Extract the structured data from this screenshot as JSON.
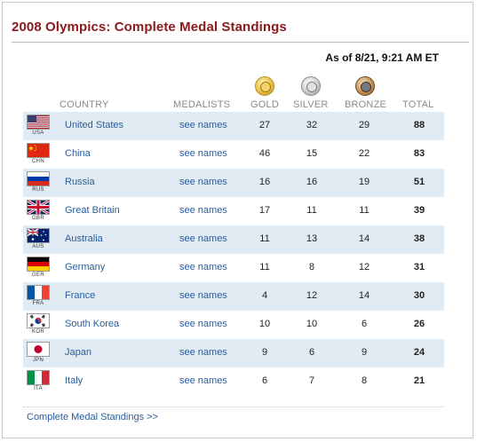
{
  "title": "2008 Olympics: Complete Medal Standings",
  "as_of": "As of 8/21, 9:21 AM ET",
  "headers": {
    "country": "COUNTRY",
    "medalists": "MEDALISTS",
    "gold": "GOLD",
    "silver": "SILVER",
    "bronze": "BRONZE",
    "total": "TOTAL"
  },
  "medal_icons": [
    "gold-medal-icon",
    "silver-medal-icon",
    "bronze-medal-icon"
  ],
  "colors": {
    "title": "#8b1a1a",
    "link": "#2a5d9a",
    "row_shade": "#e1ebf3"
  },
  "rows": [
    {
      "code": "USA",
      "country": "United States",
      "link": "see names",
      "gold": "27",
      "silver": "32",
      "bronze": "29",
      "total": "88"
    },
    {
      "code": "CHN",
      "country": "China",
      "link": "see names",
      "gold": "46",
      "silver": "15",
      "bronze": "22",
      "total": "83"
    },
    {
      "code": "RUS",
      "country": "Russia",
      "link": "see names",
      "gold": "16",
      "silver": "16",
      "bronze": "19",
      "total": "51"
    },
    {
      "code": "GBR",
      "country": "Great Britain",
      "link": "see names",
      "gold": "17",
      "silver": "11",
      "bronze": "11",
      "total": "39"
    },
    {
      "code": "AUS",
      "country": "Australia",
      "link": "see names",
      "gold": "11",
      "silver": "13",
      "bronze": "14",
      "total": "38"
    },
    {
      "code": "GER",
      "country": "Germany",
      "link": "see names",
      "gold": "11",
      "silver": "8",
      "bronze": "12",
      "total": "31"
    },
    {
      "code": "FRA",
      "country": "France",
      "link": "see names",
      "gold": "4",
      "silver": "12",
      "bronze": "14",
      "total": "30"
    },
    {
      "code": "KOR",
      "country": "South Korea",
      "link": "see names",
      "gold": "10",
      "silver": "10",
      "bronze": "6",
      "total": "26"
    },
    {
      "code": "JPN",
      "country": "Japan",
      "link": "see names",
      "gold": "9",
      "silver": "6",
      "bronze": "9",
      "total": "24"
    },
    {
      "code": "ITA",
      "country": "Italy",
      "link": "see names",
      "gold": "6",
      "silver": "7",
      "bronze": "8",
      "total": "21"
    }
  ],
  "footer_link": "Complete Medal Standings >>"
}
